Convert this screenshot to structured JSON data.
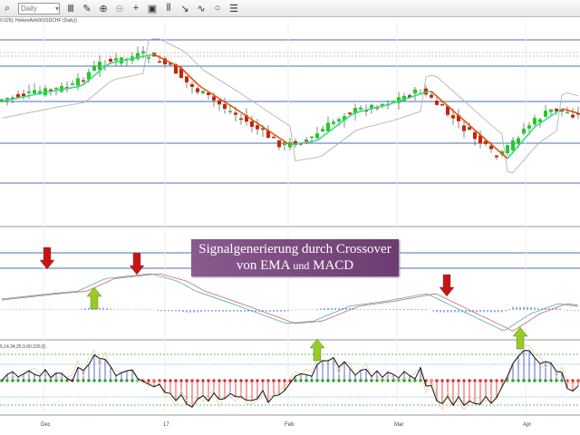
{
  "toolbar": {
    "period": "Daily",
    "icons": [
      "search-icon",
      "bar-chart-icon",
      "pencil-icon",
      "zoom-in-icon",
      "zoom-out-icon",
      "crosshair-icon",
      "template-icon",
      "period-separator-icon",
      "autoscroll-icon",
      "indicator-icon",
      "circle-icon",
      "list-icon"
    ]
  },
  "chart": {
    "label": "0.025); HeikenAshi9(USDCHF (Daily))",
    "oscillator_label": "5,14,34,25.9,60,100,2)",
    "x_labels": [
      "Dec",
      "17",
      "Feb",
      "Mar",
      "Apr"
    ]
  },
  "overlay": {
    "line1": "Signalgenerierung durch Crossover",
    "line2a": "von EMA ",
    "line2b": "und",
    "line2c": " MACD"
  },
  "colors": {
    "bull": "#22cc22",
    "bear": "#cc2200",
    "level_line": "#4a6fb5",
    "sell_arrow": "#cc1111",
    "buy_arrow": "#99cc22",
    "overlay": "#7a4a80"
  }
}
